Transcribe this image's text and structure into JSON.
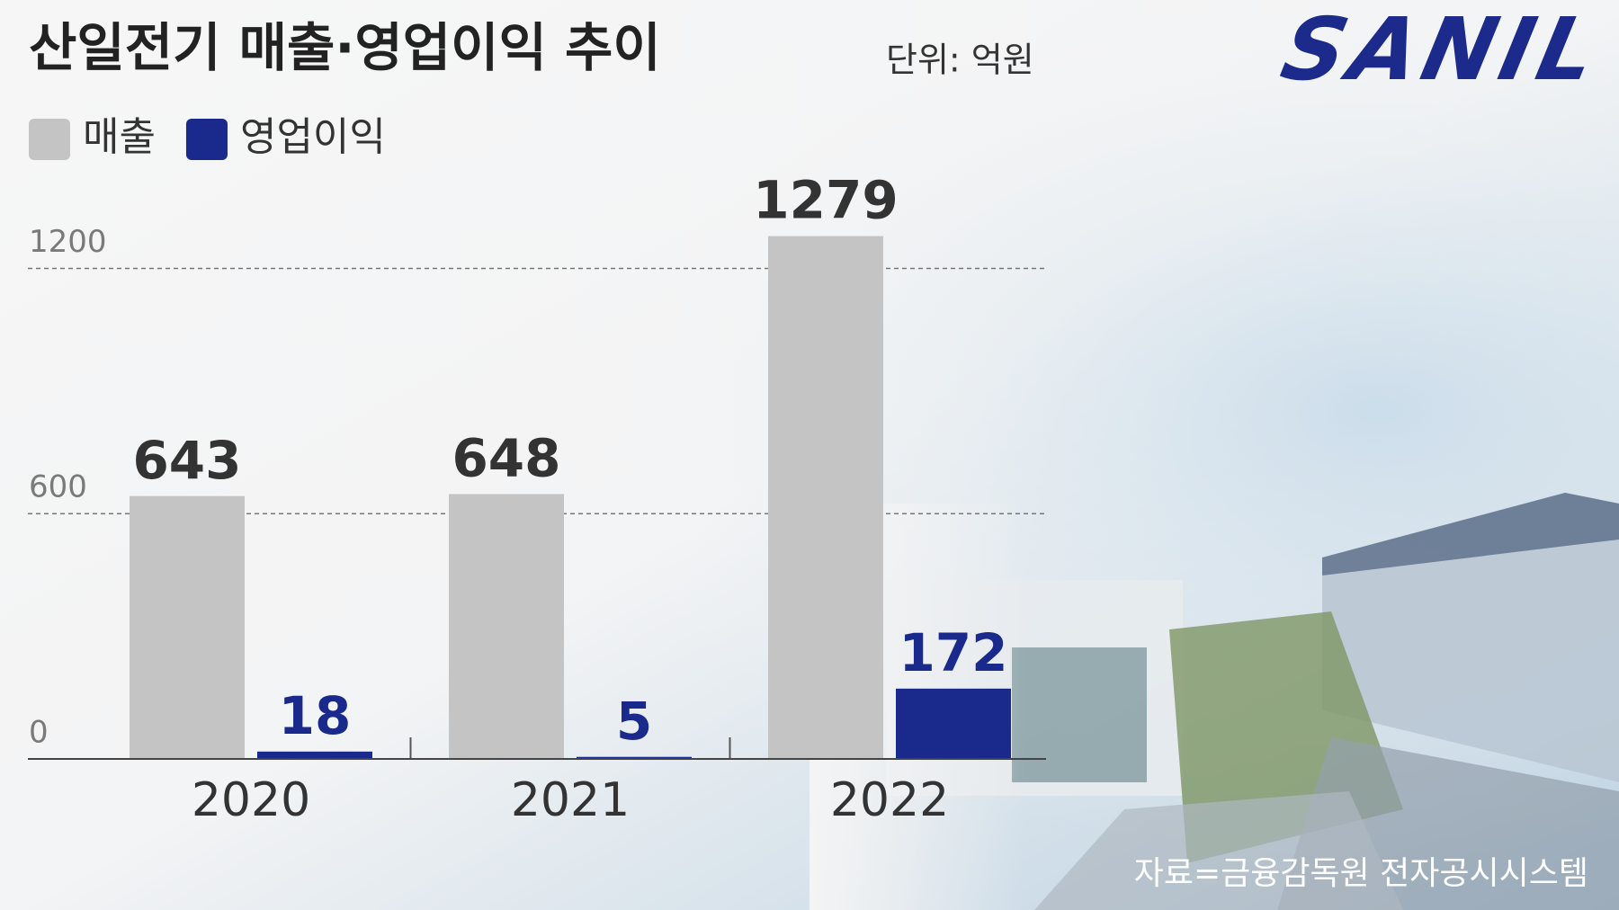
{
  "chart_data": {
    "type": "bar",
    "title": "산일전기 매출·영업이익 추이",
    "subtitle": "단위: 억원",
    "logo": "SANIL",
    "source": "자료=금융감독원 전자공시시스템",
    "categories": [
      "2020",
      "2021",
      "2022"
    ],
    "series": [
      {
        "name": "매출",
        "color": "#c4c4c4",
        "label_color": "#333333",
        "values": [
          643,
          648,
          1279
        ]
      },
      {
        "name": "영업이익",
        "color": "#1a2a8c",
        "label_color": "#1a2a8c",
        "values": [
          18,
          5,
          172
        ]
      }
    ],
    "ylim": [
      0,
      1300
    ],
    "yticks": [
      0,
      600,
      1200
    ],
    "grid": true,
    "legend": "top-left"
  }
}
